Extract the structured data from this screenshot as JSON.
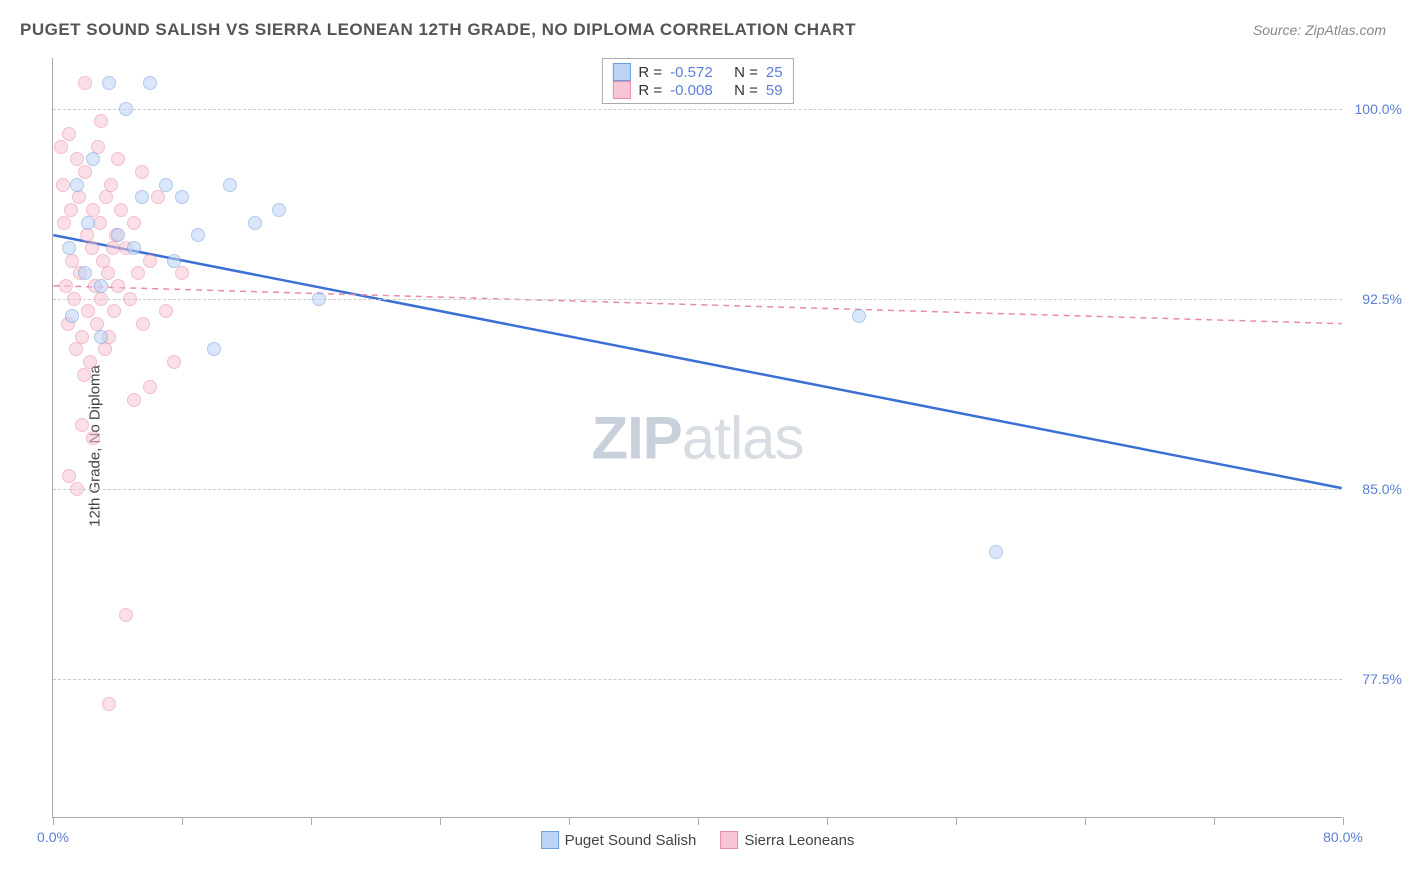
{
  "title": "PUGET SOUND SALISH VS SIERRA LEONEAN 12TH GRADE, NO DIPLOMA CORRELATION CHART",
  "source": "Source: ZipAtlas.com",
  "y_axis_label": "12th Grade, No Diploma",
  "watermark": {
    "bold": "ZIP",
    "rest": "atlas"
  },
  "chart": {
    "type": "scatter",
    "xlim": [
      0,
      80
    ],
    "ylim": [
      72,
      102
    ],
    "x_ticks": [
      0,
      80
    ],
    "x_tick_labels": [
      "0.0%",
      "80.0%"
    ],
    "x_minor_ticks": [
      8,
      16,
      24,
      32,
      40,
      48,
      56,
      64,
      72
    ],
    "y_ticks": [
      77.5,
      85.0,
      92.5,
      100.0
    ],
    "y_tick_labels": [
      "77.5%",
      "85.0%",
      "92.5%",
      "100.0%"
    ],
    "background_color": "#ffffff",
    "grid_color": "#cccccc",
    "point_radius": 7,
    "point_stroke_width": 1,
    "series": [
      {
        "name": "Puget Sound Salish",
        "fill": "#bcd3f5",
        "stroke": "#6f9ddb",
        "fill_opacity": 0.55,
        "trend": {
          "x1": 0,
          "y1": 95.0,
          "x2": 80,
          "y2": 85.0,
          "color": "#3b6fd4",
          "width": 2.5,
          "dash": "none"
        },
        "points": [
          [
            1.0,
            94.5
          ],
          [
            1.2,
            91.8
          ],
          [
            1.5,
            97.0
          ],
          [
            2.0,
            93.5
          ],
          [
            2.2,
            95.5
          ],
          [
            2.5,
            98.0
          ],
          [
            3.0,
            91.0
          ],
          [
            3.5,
            101.0
          ],
          [
            4.0,
            95.0
          ],
          [
            4.5,
            100.0
          ],
          [
            5.0,
            94.5
          ],
          [
            5.5,
            96.5
          ],
          [
            6.0,
            101.0
          ],
          [
            7.0,
            97.0
          ],
          [
            7.5,
            94.0
          ],
          [
            8.0,
            96.5
          ],
          [
            9.0,
            95.0
          ],
          [
            10.0,
            90.5
          ],
          [
            11.0,
            97.0
          ],
          [
            12.5,
            95.5
          ],
          [
            14.0,
            96.0
          ],
          [
            16.5,
            92.5
          ],
          [
            50.0,
            91.8
          ],
          [
            58.5,
            82.5
          ],
          [
            3.0,
            93.0
          ]
        ]
      },
      {
        "name": "Sierra Leoneans",
        "fill": "#f7c6d4",
        "stroke": "#e88ba8",
        "fill_opacity": 0.55,
        "trend": {
          "x1": 0,
          "y1": 93.0,
          "x2": 80,
          "y2": 91.5,
          "color": "#e88ba8",
          "width": 1.5,
          "dash": "6,5"
        },
        "points": [
          [
            0.5,
            98.5
          ],
          [
            0.6,
            97.0
          ],
          [
            0.7,
            95.5
          ],
          [
            0.8,
            93.0
          ],
          [
            0.9,
            91.5
          ],
          [
            1.0,
            99.0
          ],
          [
            1.1,
            96.0
          ],
          [
            1.2,
            94.0
          ],
          [
            1.3,
            92.5
          ],
          [
            1.4,
            90.5
          ],
          [
            1.5,
            98.0
          ],
          [
            1.6,
            96.5
          ],
          [
            1.7,
            93.5
          ],
          [
            1.8,
            91.0
          ],
          [
            1.9,
            89.5
          ],
          [
            2.0,
            97.5
          ],
          [
            2.1,
            95.0
          ],
          [
            2.2,
            92.0
          ],
          [
            2.3,
            90.0
          ],
          [
            2.4,
            94.5
          ],
          [
            2.5,
            96.0
          ],
          [
            2.6,
            93.0
          ],
          [
            2.7,
            91.5
          ],
          [
            2.8,
            98.5
          ],
          [
            2.9,
            95.5
          ],
          [
            3.0,
            92.5
          ],
          [
            3.1,
            94.0
          ],
          [
            3.2,
            90.5
          ],
          [
            3.3,
            96.5
          ],
          [
            3.4,
            93.5
          ],
          [
            3.5,
            91.0
          ],
          [
            3.6,
            97.0
          ],
          [
            3.7,
            94.5
          ],
          [
            3.8,
            92.0
          ],
          [
            3.9,
            95.0
          ],
          [
            4.0,
            93.0
          ],
          [
            4.2,
            96.0
          ],
          [
            4.5,
            94.5
          ],
          [
            4.8,
            92.5
          ],
          [
            5.0,
            95.5
          ],
          [
            5.3,
            93.5
          ],
          [
            5.6,
            91.5
          ],
          [
            6.0,
            94.0
          ],
          [
            6.5,
            96.5
          ],
          [
            7.0,
            92.0
          ],
          [
            7.5,
            90.0
          ],
          [
            8.0,
            93.5
          ],
          [
            1.0,
            85.5
          ],
          [
            1.5,
            85.0
          ],
          [
            2.5,
            87.0
          ],
          [
            3.5,
            76.5
          ],
          [
            4.5,
            80.0
          ],
          [
            5.0,
            88.5
          ],
          [
            6.0,
            89.0
          ],
          [
            2.0,
            101.0
          ],
          [
            3.0,
            99.5
          ],
          [
            4.0,
            98.0
          ],
          [
            5.5,
            97.5
          ],
          [
            1.8,
            87.5
          ]
        ]
      }
    ]
  },
  "legend_top": [
    {
      "swatch_fill": "#bcd3f5",
      "swatch_stroke": "#6f9ddb",
      "r_label": "R =",
      "r_val": "-0.572",
      "n_label": "N =",
      "n_val": "25"
    },
    {
      "swatch_fill": "#f7c6d4",
      "swatch_stroke": "#e88ba8",
      "r_label": "R =",
      "r_val": "-0.008",
      "n_label": "N =",
      "n_val": "59"
    }
  ],
  "legend_bottom": [
    {
      "swatch_fill": "#bcd3f5",
      "swatch_stroke": "#6f9ddb",
      "label": "Puget Sound Salish"
    },
    {
      "swatch_fill": "#f7c6d4",
      "swatch_stroke": "#e88ba8",
      "label": "Sierra Leoneans"
    }
  ]
}
